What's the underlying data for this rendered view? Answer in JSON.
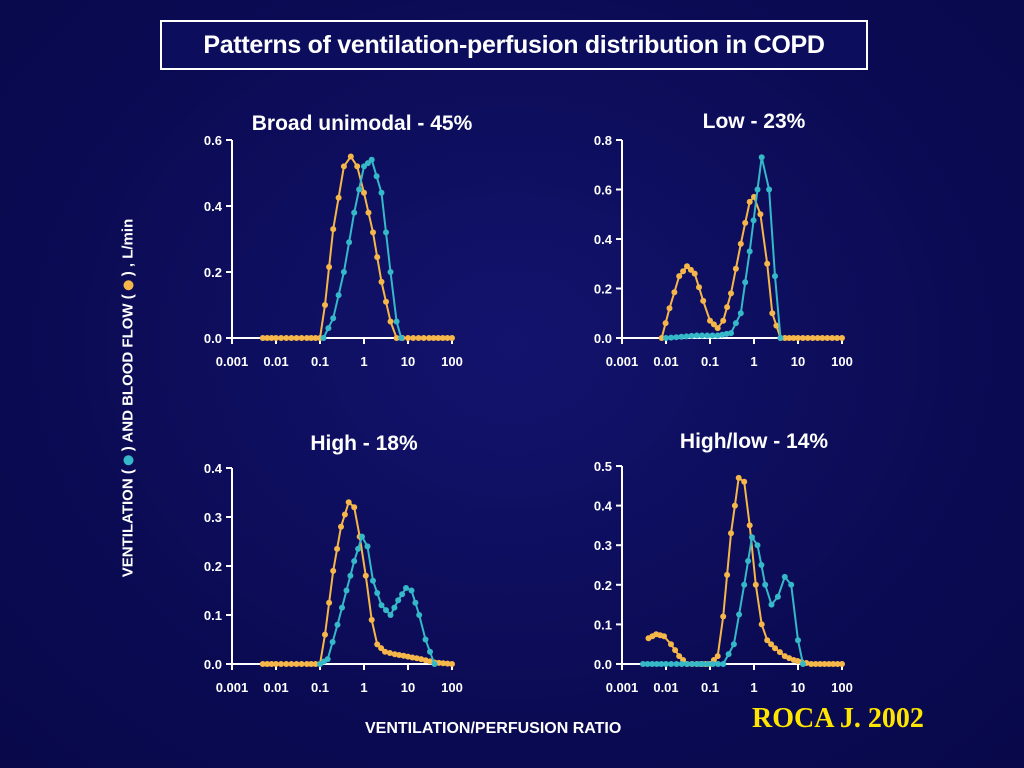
{
  "title": "Patterns of ventilation-perfusion distribution in COPD",
  "y_axis_label": "VENTILATION ( ) AND BLOOD FLOW ( ) , L/min",
  "y_axis_label_parts": [
    "VENTILATION (",
    ") AND BLOOD FLOW (",
    ") , L/min"
  ],
  "x_axis_label": "VENTILATION/PERFUSION RATIO",
  "citation": "ROCA J. 2002",
  "colors": {
    "ventilation": "#35b8c8",
    "blood_flow": "#f5b64a",
    "background": "#0b0b55",
    "text": "#ffffff",
    "citation": "#ffe600"
  },
  "chart_data": [
    {
      "type": "line",
      "title": "Broad unimodal - 45%",
      "x_scale": "log",
      "xlim": [
        0.001,
        100
      ],
      "xticks": [
        "0.001",
        "0.01",
        "0.1",
        "1",
        "10",
        "100"
      ],
      "ylim": [
        0,
        0.6
      ],
      "yticks": [
        "0.0",
        "0.2",
        "0.4",
        "0.6"
      ],
      "series": [
        {
          "key": "ventilation",
          "x": [
            0.12,
            0.2,
            0.35,
            0.6,
            1,
            1.5,
            2.5,
            4,
            5.5,
            7
          ],
          "values": [
            0.0,
            0.06,
            0.2,
            0.38,
            0.52,
            0.54,
            0.44,
            0.2,
            0.05,
            0.0
          ]
        },
        {
          "key": "blood_flow",
          "x": [
            0.005,
            0.01,
            0.05,
            0.1,
            0.13,
            0.2,
            0.35,
            0.5,
            0.7,
            1,
            1.6,
            2.5,
            4,
            5.5,
            10,
            30,
            100
          ],
          "values": [
            0.0,
            0.0,
            0.0,
            0.0,
            0.1,
            0.33,
            0.52,
            0.55,
            0.52,
            0.44,
            0.32,
            0.17,
            0.05,
            0.0,
            0.0,
            0.0,
            0.0
          ]
        }
      ]
    },
    {
      "type": "line",
      "title": "Low - 23%",
      "x_scale": "log",
      "xlim": [
        0.001,
        100
      ],
      "xticks": [
        "0.001",
        "0.01",
        "0.1",
        "1",
        "10",
        "100"
      ],
      "ylim": [
        0,
        0.8
      ],
      "yticks": [
        "0.0",
        "0.2",
        "0.4",
        "0.6",
        "0.8"
      ],
      "series": [
        {
          "key": "ventilation",
          "x": [
            0.01,
            0.05,
            0.15,
            0.3,
            0.5,
            0.8,
            1.2,
            1.5,
            2.2,
            3,
            4
          ],
          "values": [
            0.0,
            0.01,
            0.01,
            0.02,
            0.1,
            0.35,
            0.6,
            0.73,
            0.6,
            0.25,
            0.0
          ]
        },
        {
          "key": "blood_flow",
          "x": [
            0.008,
            0.012,
            0.02,
            0.03,
            0.045,
            0.07,
            0.1,
            0.15,
            0.2,
            0.3,
            0.5,
            0.8,
            1,
            1.4,
            2,
            2.6,
            4,
            10,
            100
          ],
          "values": [
            0.0,
            0.12,
            0.25,
            0.29,
            0.26,
            0.15,
            0.07,
            0.04,
            0.07,
            0.18,
            0.38,
            0.55,
            0.57,
            0.5,
            0.3,
            0.1,
            0.0,
            0.0,
            0.0
          ]
        }
      ]
    },
    {
      "type": "line",
      "title": "High - 18%",
      "x_scale": "log",
      "xlim": [
        0.001,
        100
      ],
      "xticks": [
        "0.001",
        "0.01",
        "0.1",
        "1",
        "10",
        "100"
      ],
      "ylim": [
        0,
        0.4
      ],
      "yticks": [
        "0.0",
        "0.1",
        "0.2",
        "0.3",
        "0.4"
      ],
      "series": [
        {
          "key": "ventilation",
          "x": [
            0.1,
            0.15,
            0.25,
            0.4,
            0.6,
            0.9,
            1.2,
            1.6,
            2.5,
            4,
            6,
            9,
            12,
            18,
            25,
            40
          ],
          "values": [
            0.0,
            0.01,
            0.08,
            0.15,
            0.21,
            0.26,
            0.24,
            0.17,
            0.12,
            0.1,
            0.13,
            0.155,
            0.15,
            0.1,
            0.05,
            0.0
          ]
        },
        {
          "key": "blood_flow",
          "x": [
            0.005,
            0.01,
            0.05,
            0.1,
            0.13,
            0.2,
            0.3,
            0.45,
            0.6,
            0.8,
            1.1,
            1.5,
            2,
            3,
            5,
            10,
            20,
            40,
            100
          ],
          "values": [
            0.0,
            0.0,
            0.0,
            0.0,
            0.06,
            0.19,
            0.28,
            0.33,
            0.32,
            0.26,
            0.18,
            0.09,
            0.04,
            0.025,
            0.02,
            0.015,
            0.01,
            0.003,
            0.0
          ]
        }
      ]
    },
    {
      "type": "line",
      "title": "High/low - 14%",
      "x_scale": "log",
      "xlim": [
        0.001,
        100
      ],
      "xticks": [
        "0.001",
        "0.01",
        "0.1",
        "1",
        "10",
        "100"
      ],
      "ylim": [
        0,
        0.5
      ],
      "yticks": [
        "0.0",
        "0.1",
        "0.2",
        "0.3",
        "0.4",
        "0.5"
      ],
      "series": [
        {
          "key": "ventilation",
          "x": [
            0.003,
            0.01,
            0.03,
            0.2,
            0.35,
            0.6,
            0.9,
            1.2,
            1.8,
            2.5,
            3.5,
            5,
            7,
            10,
            13
          ],
          "values": [
            0.0,
            0.0,
            0.0,
            0.0,
            0.05,
            0.2,
            0.32,
            0.3,
            0.2,
            0.15,
            0.17,
            0.22,
            0.2,
            0.06,
            0.0
          ]
        },
        {
          "key": "blood_flow",
          "x": [
            0.004,
            0.006,
            0.009,
            0.013,
            0.02,
            0.03,
            0.05,
            0.1,
            0.15,
            0.2,
            0.3,
            0.45,
            0.6,
            0.8,
            1.1,
            1.5,
            2,
            3,
            5,
            8,
            12,
            20,
            40,
            100
          ],
          "values": [
            0.065,
            0.075,
            0.07,
            0.05,
            0.02,
            0.0,
            0.0,
            0.0,
            0.02,
            0.12,
            0.33,
            0.47,
            0.46,
            0.35,
            0.2,
            0.1,
            0.06,
            0.04,
            0.02,
            0.01,
            0.005,
            0.0,
            0.0,
            0.0
          ]
        }
      ]
    }
  ]
}
